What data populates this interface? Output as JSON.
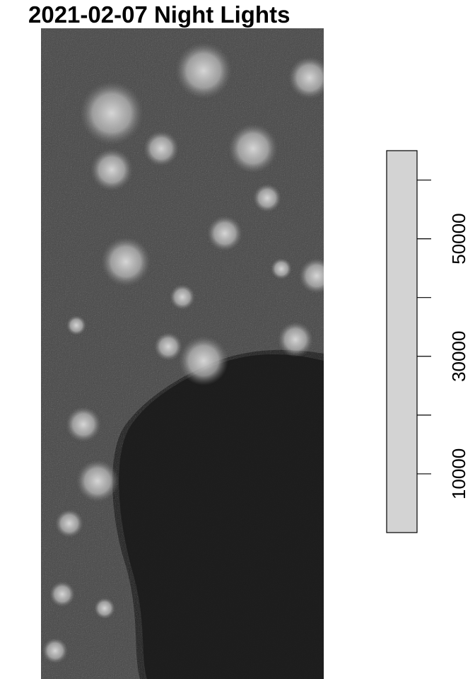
{
  "title": "2021-02-07 Night Lights",
  "raster": {
    "description_colors": {
      "dark": "#1c1c1c",
      "mid": "#555555",
      "light": "#bdbdbd",
      "bright": "#d0d0d0"
    }
  },
  "legend": {
    "fill_color": "#d3d3d3",
    "range": [
      0,
      65000
    ],
    "ticks": [
      {
        "value": 10000,
        "label": "10000"
      },
      {
        "value": 20000,
        "label": ""
      },
      {
        "value": 30000,
        "label": "30000"
      },
      {
        "value": 40000,
        "label": ""
      },
      {
        "value": 50000,
        "label": "50000"
      },
      {
        "value": 60000,
        "label": ""
      }
    ]
  }
}
